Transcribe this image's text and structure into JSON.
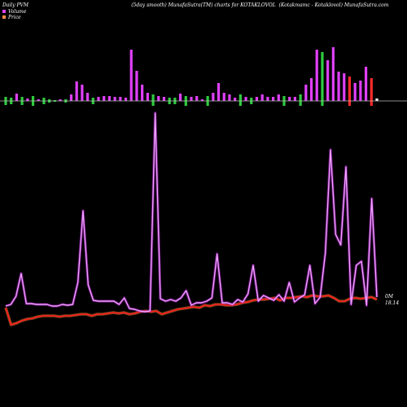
{
  "header": {
    "left": "Daily PVM",
    "center": "(5day smooth) MunafaSutra(TM) charts for KOTAKLOVOL",
    "right": "(Kotakmamc - Kotaklovol) MunafaSutra.com"
  },
  "legend": [
    {
      "label": "Volume",
      "color": "#e040fb"
    },
    {
      "label": "Price",
      "color": "#ff8c42"
    }
  ],
  "chart_data": {
    "type": "line",
    "n": 69,
    "volume_bars": [
      -5,
      -4,
      -9,
      -5,
      -3,
      -6,
      -2,
      -4,
      -2,
      -1,
      -2,
      -2,
      -8,
      -24,
      -20,
      -10,
      -4,
      -5,
      -6,
      -6,
      -5,
      -5,
      -4,
      -63,
      -37,
      -20,
      -10,
      -8,
      -6,
      -5,
      -4,
      -4,
      -9,
      -6,
      -5,
      -6,
      -2,
      -6,
      -10,
      -22,
      -10,
      -8,
      -4,
      -8,
      -5,
      -4,
      -5,
      -8,
      -5,
      -5,
      -8,
      -6,
      -5,
      -5,
      -8,
      -20,
      -28,
      -63,
      -60,
      -50,
      -66,
      -36,
      -34,
      -30,
      -22,
      -25,
      -42,
      -28,
      -3
    ],
    "volume_bar_colors": [
      "g",
      "g",
      "m",
      "g",
      "m",
      "g",
      "m",
      "g",
      "g",
      "g",
      "m",
      "g",
      "m",
      "m",
      "m",
      "m",
      "g",
      "m",
      "m",
      "m",
      "m",
      "m",
      "m",
      "m",
      "m",
      "m",
      "m",
      "g",
      "m",
      "m",
      "g",
      "g",
      "m",
      "g",
      "m",
      "m",
      "m",
      "g",
      "m",
      "m",
      "m",
      "m",
      "m",
      "g",
      "m",
      "g",
      "m",
      "m",
      "m",
      "m",
      "m",
      "g",
      "m",
      "m",
      "g",
      "m",
      "m",
      "m",
      "g",
      "m",
      "m",
      "m",
      "m",
      "r",
      "m",
      "m",
      "m",
      "r",
      "w"
    ],
    "volume_line": [
      376,
      374,
      364,
      336,
      373,
      373,
      374,
      374,
      374,
      376,
      376,
      374,
      375,
      374,
      347,
      259,
      350,
      369,
      370,
      370,
      370,
      370,
      374,
      366,
      379,
      380,
      382,
      383,
      382,
      139,
      367,
      370,
      368,
      370,
      366,
      357,
      375,
      372,
      372,
      370,
      366,
      312,
      372,
      372,
      374,
      368,
      371,
      361,
      326,
      370,
      363,
      366,
      369,
      362,
      370,
      347,
      371,
      366,
      362,
      326,
      373,
      365,
      311,
      184,
      288,
      301,
      205,
      374,
      326,
      321,
      375,
      244,
      365
    ],
    "price_line": [
      378,
      399,
      397,
      394,
      392,
      391,
      389,
      388,
      388,
      388,
      389,
      388,
      388,
      387,
      386,
      386,
      388,
      386,
      386,
      385,
      384,
      385,
      384,
      386,
      385,
      383,
      382,
      383,
      382,
      386,
      384,
      382,
      380,
      379,
      378,
      377,
      378,
      375,
      376,
      374,
      374,
      375,
      375,
      374,
      372,
      371,
      369,
      368,
      368,
      367,
      366,
      369,
      366,
      366,
      365,
      364,
      365,
      363,
      364,
      364,
      363,
      366,
      370,
      370,
      367,
      366,
      367,
      366,
      365,
      368
    ],
    "labels": {
      "volume_end": "0M",
      "price_end": "18.14"
    }
  }
}
